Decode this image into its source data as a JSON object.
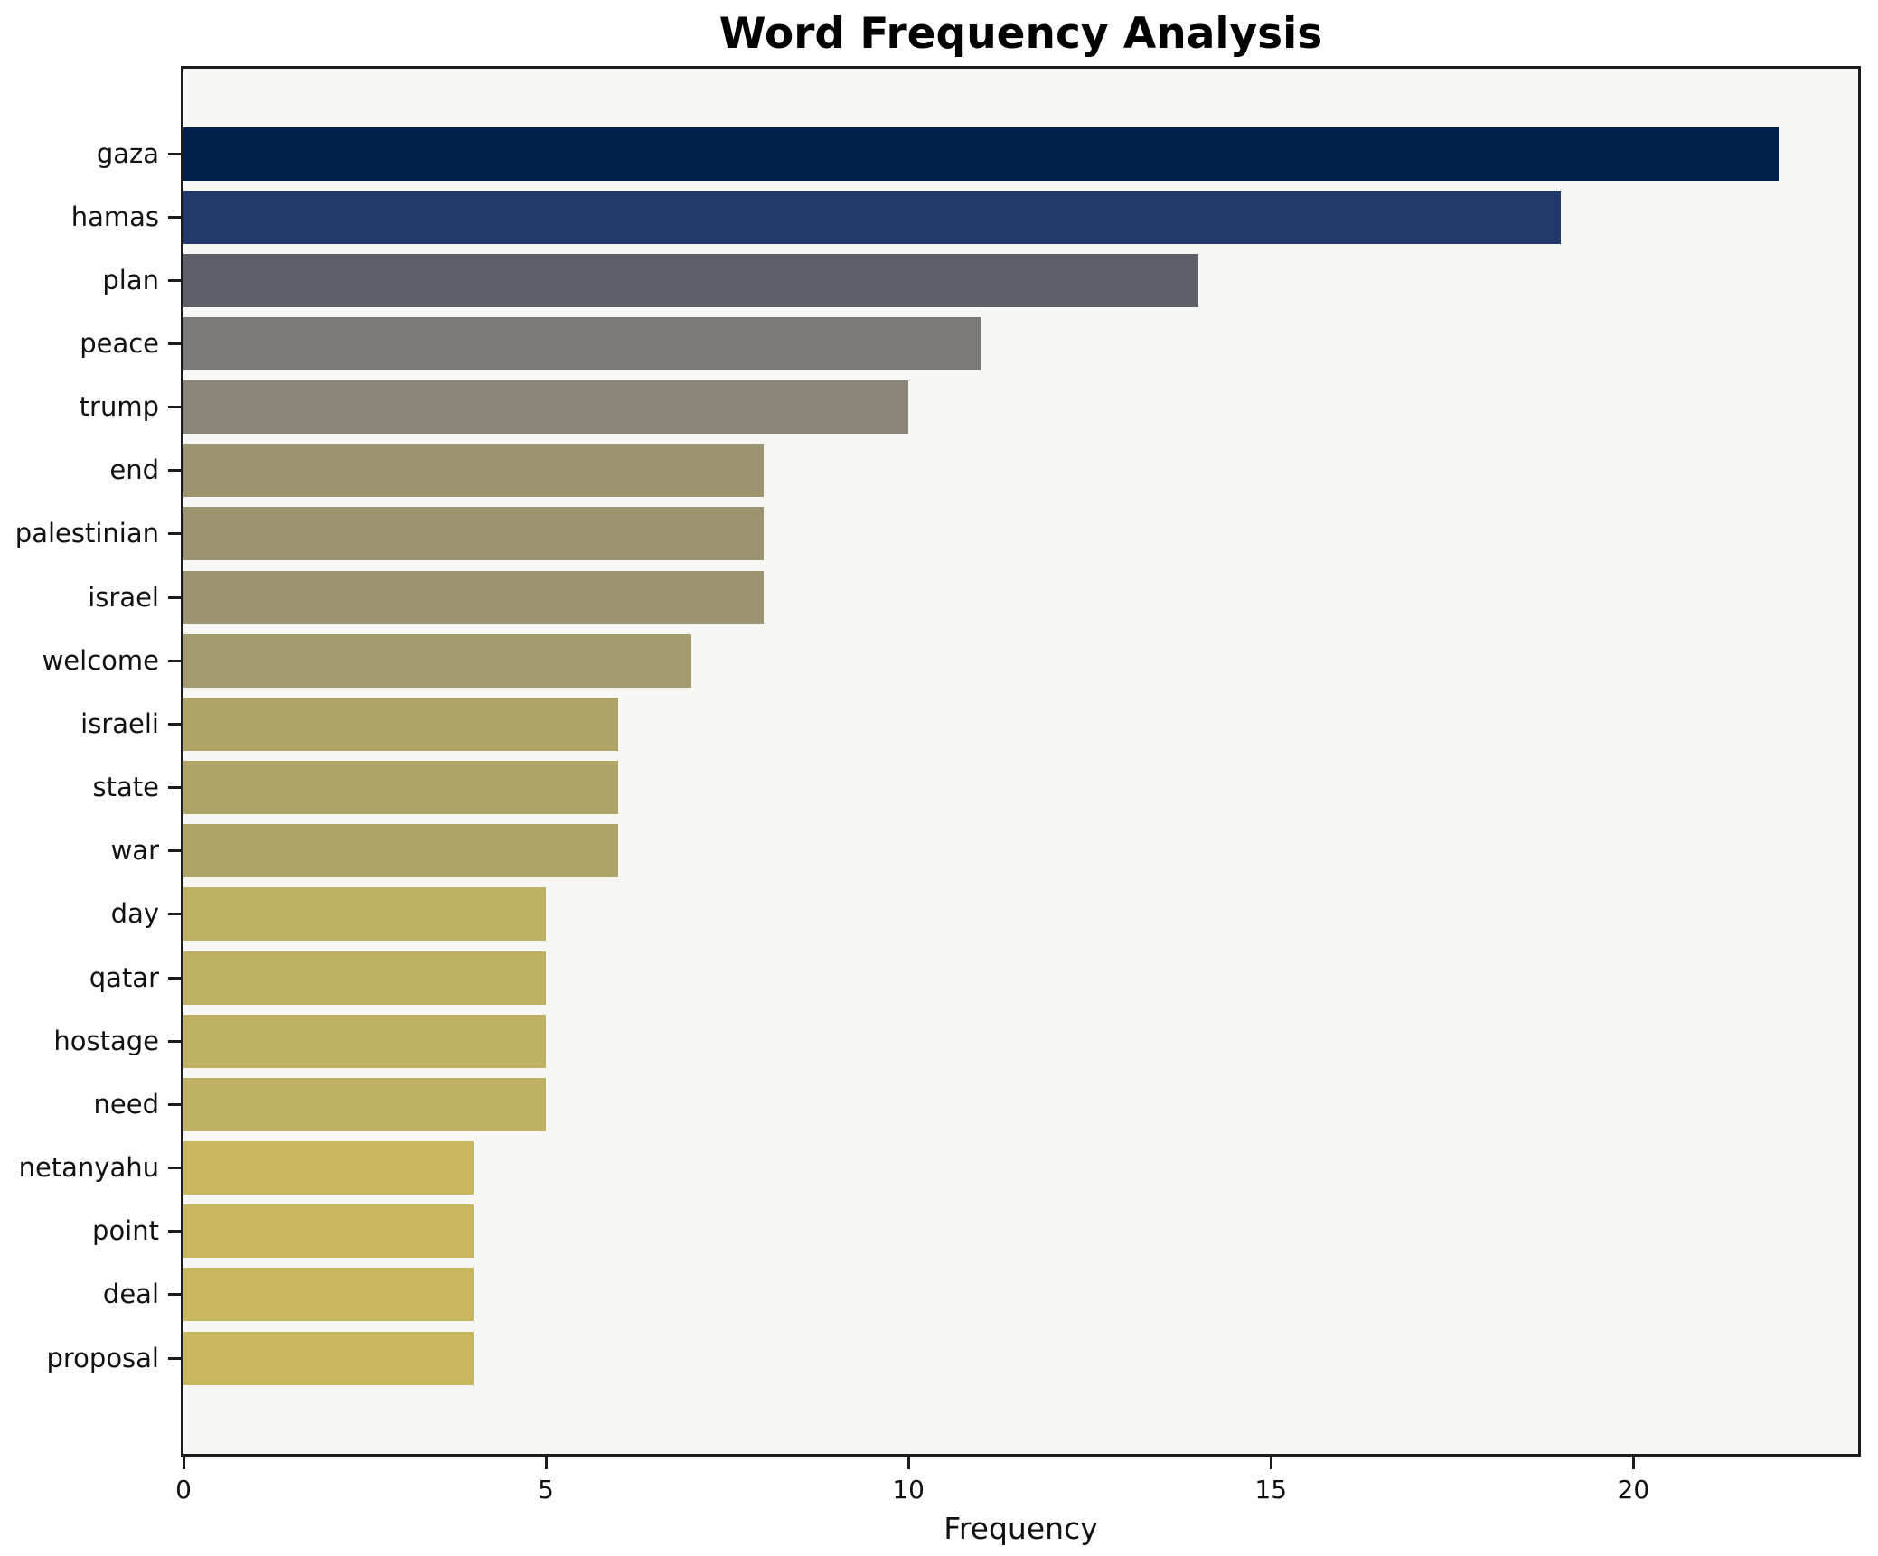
{
  "chart_data": {
    "type": "bar",
    "orientation": "horizontal",
    "title": "Word Frequency Analysis",
    "xlabel": "Frequency",
    "ylabel": "",
    "categories": [
      "gaza",
      "hamas",
      "plan",
      "peace",
      "trump",
      "end",
      "palestinian",
      "israel",
      "welcome",
      "israeli",
      "state",
      "war",
      "day",
      "qatar",
      "hostage",
      "need",
      "netanyahu",
      "point",
      "deal",
      "proposal"
    ],
    "values": [
      22,
      19,
      14,
      11,
      10,
      8,
      8,
      8,
      7,
      6,
      6,
      6,
      5,
      5,
      5,
      5,
      4,
      4,
      4,
      4
    ],
    "bar_colors": [
      "#03214c",
      "#223a6b",
      "#5d6069",
      "#7b7a78",
      "#8a8578",
      "#9c9471",
      "#9c9471",
      "#9c9471",
      "#a59c6d",
      "#aea468",
      "#aea468",
      "#aea468",
      "#bfb064",
      "#bfb064",
      "#bfb064",
      "#bfb064",
      "#c9b75f",
      "#c9b75f",
      "#c9b75f",
      "#c9b75f"
    ],
    "xlim": [
      0,
      23.1
    ],
    "x_ticks": [
      0,
      5,
      10,
      15,
      20
    ],
    "grid": false,
    "legend": "none",
    "plot_background": "#f7f7f6",
    "figure_background": "#ffffff",
    "spine_color": "#1c1c1c",
    "colormap": "cividis (dark blue = high frequency, khaki = low frequency)"
  }
}
